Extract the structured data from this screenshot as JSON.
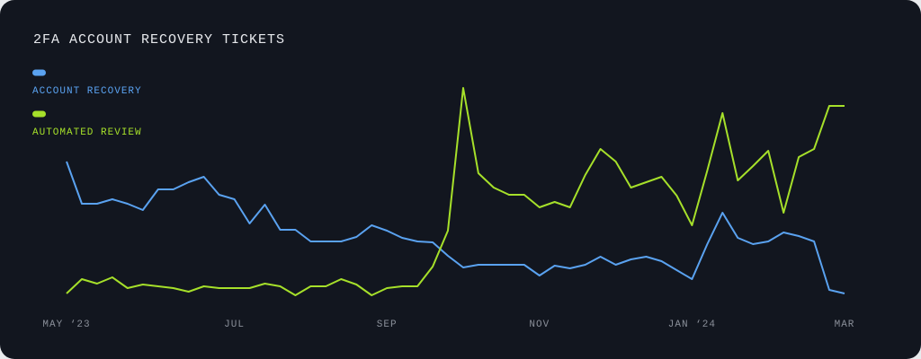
{
  "chart_data": {
    "type": "line",
    "title": "2FA ACCOUNT RECOVERY TICKETS",
    "categories": [
      "MAY ‘23",
      null,
      null,
      null,
      null,
      null,
      null,
      null,
      null,
      null,
      null,
      "JUL",
      null,
      null,
      null,
      null,
      null,
      null,
      null,
      null,
      null,
      "SEP",
      null,
      null,
      null,
      null,
      null,
      null,
      null,
      null,
      null,
      "NOV",
      null,
      null,
      null,
      null,
      null,
      null,
      null,
      null,
      null,
      "JAN ‘24",
      null,
      null,
      null,
      null,
      null,
      null,
      null,
      null,
      null,
      "MAR"
    ],
    "series": [
      {
        "name": "ACCOUNT RECOVERY",
        "color": "#5aa2f0",
        "values": [
          170,
          123,
          123,
          128,
          123,
          116,
          139,
          139,
          147,
          153,
          133,
          128,
          101,
          122,
          94,
          94,
          81,
          81,
          81,
          86,
          99,
          93,
          85,
          81,
          80,
          65,
          52,
          55,
          55,
          55,
          55,
          43,
          54,
          51,
          55,
          64,
          55,
          61,
          64,
          59,
          49,
          39,
          78,
          113,
          85,
          78,
          81,
          91,
          87,
          81,
          27,
          23
        ]
      },
      {
        "name": "AUTOMATED REVIEW",
        "color": "#a6e02a",
        "values": [
          23,
          39,
          34,
          41,
          29,
          33,
          31,
          29,
          25,
          31,
          29,
          29,
          29,
          34,
          31,
          21,
          31,
          31,
          39,
          33,
          21,
          29,
          31,
          31,
          53,
          93,
          252,
          157,
          141,
          133,
          133,
          119,
          125,
          119,
          155,
          184,
          170,
          141,
          147,
          153,
          132,
          99,
          160,
          224,
          149,
          165,
          182,
          113,
          175,
          184,
          232,
          232
        ]
      }
    ],
    "ylim": [
      0,
      260
    ]
  }
}
